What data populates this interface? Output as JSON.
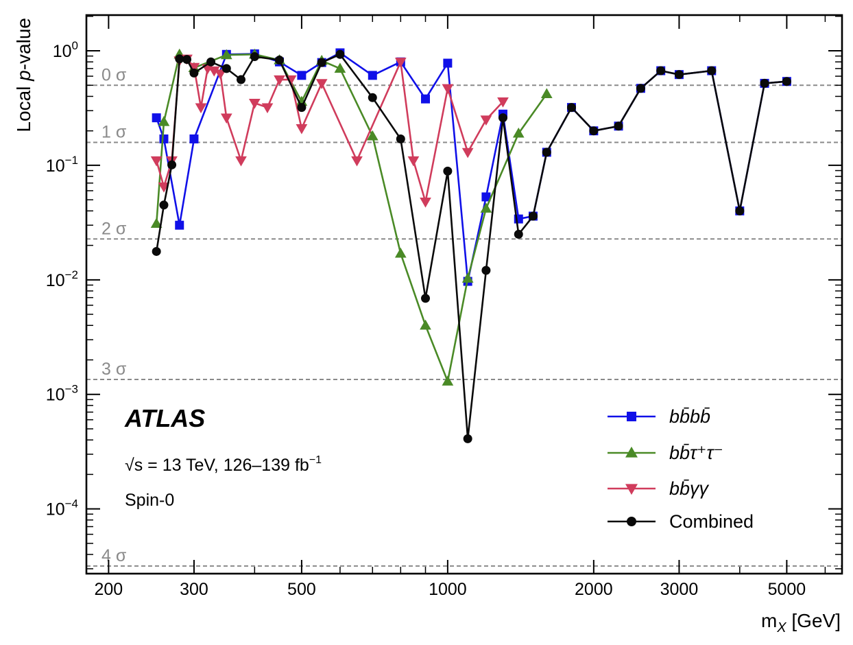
{
  "chart_data": {
    "type": "line",
    "title": "",
    "xlabel_main": "m",
    "xlabel_sub": "X",
    "xlabel_unit": " [GeV]",
    "ylabel_pre": "Local ",
    "ylabel_italic": "p",
    "ylabel_post": "-value",
    "x_scale": "log",
    "y_scale": "log",
    "xlim": [
      180,
      6500
    ],
    "ylim": [
      2.72e-05,
      2.05
    ],
    "x_ticks": [
      {
        "value": 200,
        "label": "200"
      },
      {
        "value": 300,
        "label": "300"
      },
      {
        "value": 500,
        "label": "500"
      },
      {
        "value": 1000,
        "label": "1000"
      },
      {
        "value": 2000,
        "label": "2000"
      },
      {
        "value": 3000,
        "label": "3000"
      },
      {
        "value": 5000,
        "label": "5000"
      }
    ],
    "y_ticks": [
      {
        "value": 1,
        "base": "10",
        "exp": "0"
      },
      {
        "value": 0.1,
        "base": "10",
        "exp": "−1"
      },
      {
        "value": 0.01,
        "base": "10",
        "exp": "−2"
      },
      {
        "value": 0.001,
        "base": "10",
        "exp": "−3"
      },
      {
        "value": 0.0001,
        "base": "10",
        "exp": "−4"
      }
    ],
    "sigma_lines": [
      {
        "value": 0.5,
        "label": "0 σ"
      },
      {
        "value": 0.1587,
        "label": "1 σ"
      },
      {
        "value": 0.02275,
        "label": "2 σ"
      },
      {
        "value": 0.00135,
        "label": "3 σ"
      },
      {
        "value": 3.17e-05,
        "label": "4 σ"
      }
    ],
    "annotations": {
      "experiment": "ATLAS",
      "energy": "√s = 13 TeV, 126–139 fb",
      "energy_sup": "−1",
      "model": "Spin-0"
    },
    "legend_position": "bottom-right",
    "series": [
      {
        "name": "bb̄bb̄",
        "color": "#1010e8",
        "marker": "square",
        "x": [
          251,
          260,
          280,
          300,
          350,
          400,
          450,
          500,
          550,
          600,
          700,
          800,
          900,
          1000,
          1100,
          1200,
          1300,
          1400,
          1500,
          1600,
          1800,
          2000,
          2250,
          2500,
          2750,
          3000,
          3500,
          4000,
          4500,
          5000
        ],
        "y": [
          0.26,
          0.17,
          0.03,
          0.17,
          0.93,
          0.94,
          0.8,
          0.61,
          0.79,
          0.96,
          0.61,
          0.8,
          0.38,
          0.78,
          0.0097,
          0.053,
          0.28,
          0.034,
          0.036,
          0.13,
          0.32,
          0.2,
          0.22,
          0.47,
          0.67,
          0.62,
          0.67,
          0.04,
          0.52,
          0.54
        ]
      },
      {
        "name": "bb̄τ⁺τ⁻",
        "color": "#4a8a26",
        "marker": "triangle-up",
        "x": [
          251,
          260,
          280,
          300,
          350,
          400,
          450,
          500,
          550,
          600,
          700,
          800,
          900,
          1000,
          1100,
          1200,
          1400,
          1600
        ],
        "y": [
          0.031,
          0.24,
          0.93,
          0.71,
          0.92,
          0.93,
          0.83,
          0.36,
          0.82,
          0.7,
          0.18,
          0.017,
          0.004,
          0.0013,
          0.0103,
          0.042,
          0.19,
          0.42
        ]
      },
      {
        "name": "bb̄γγ",
        "color": "#d03c5c",
        "marker": "triangle-down",
        "x": [
          251,
          260,
          270,
          280,
          290,
          300,
          310,
          320,
          330,
          340,
          350,
          375,
          400,
          425,
          450,
          475,
          500,
          550,
          650,
          800,
          850,
          900,
          1000,
          1100,
          1200,
          1300
        ],
        "y": [
          0.11,
          0.065,
          0.11,
          0.82,
          0.85,
          0.72,
          0.32,
          0.7,
          0.67,
          0.63,
          0.26,
          0.11,
          0.35,
          0.32,
          0.56,
          0.56,
          0.21,
          0.52,
          0.11,
          0.8,
          0.11,
          0.048,
          0.47,
          0.13,
          0.25,
          0.36
        ]
      },
      {
        "name": "Combined",
        "color": "#0a0a0a",
        "marker": "circle",
        "x": [
          251,
          260,
          270,
          280,
          290,
          300,
          325,
          350,
          375,
          400,
          450,
          500,
          550,
          600,
          700,
          800,
          900,
          1000,
          1100,
          1200,
          1300,
          1400,
          1500,
          1600,
          1800,
          2000,
          2250,
          2500,
          2750,
          3000,
          3500,
          4000,
          4500,
          5000
        ],
        "y": [
          0.0177,
          0.045,
          0.101,
          0.85,
          0.84,
          0.64,
          0.8,
          0.7,
          0.56,
          0.89,
          0.83,
          0.32,
          0.79,
          0.93,
          0.39,
          0.17,
          0.0069,
          0.089,
          0.00041,
          0.0121,
          0.26,
          0.025,
          0.036,
          0.13,
          0.32,
          0.2,
          0.22,
          0.47,
          0.67,
          0.62,
          0.67,
          0.04,
          0.52,
          0.54
        ]
      }
    ]
  }
}
